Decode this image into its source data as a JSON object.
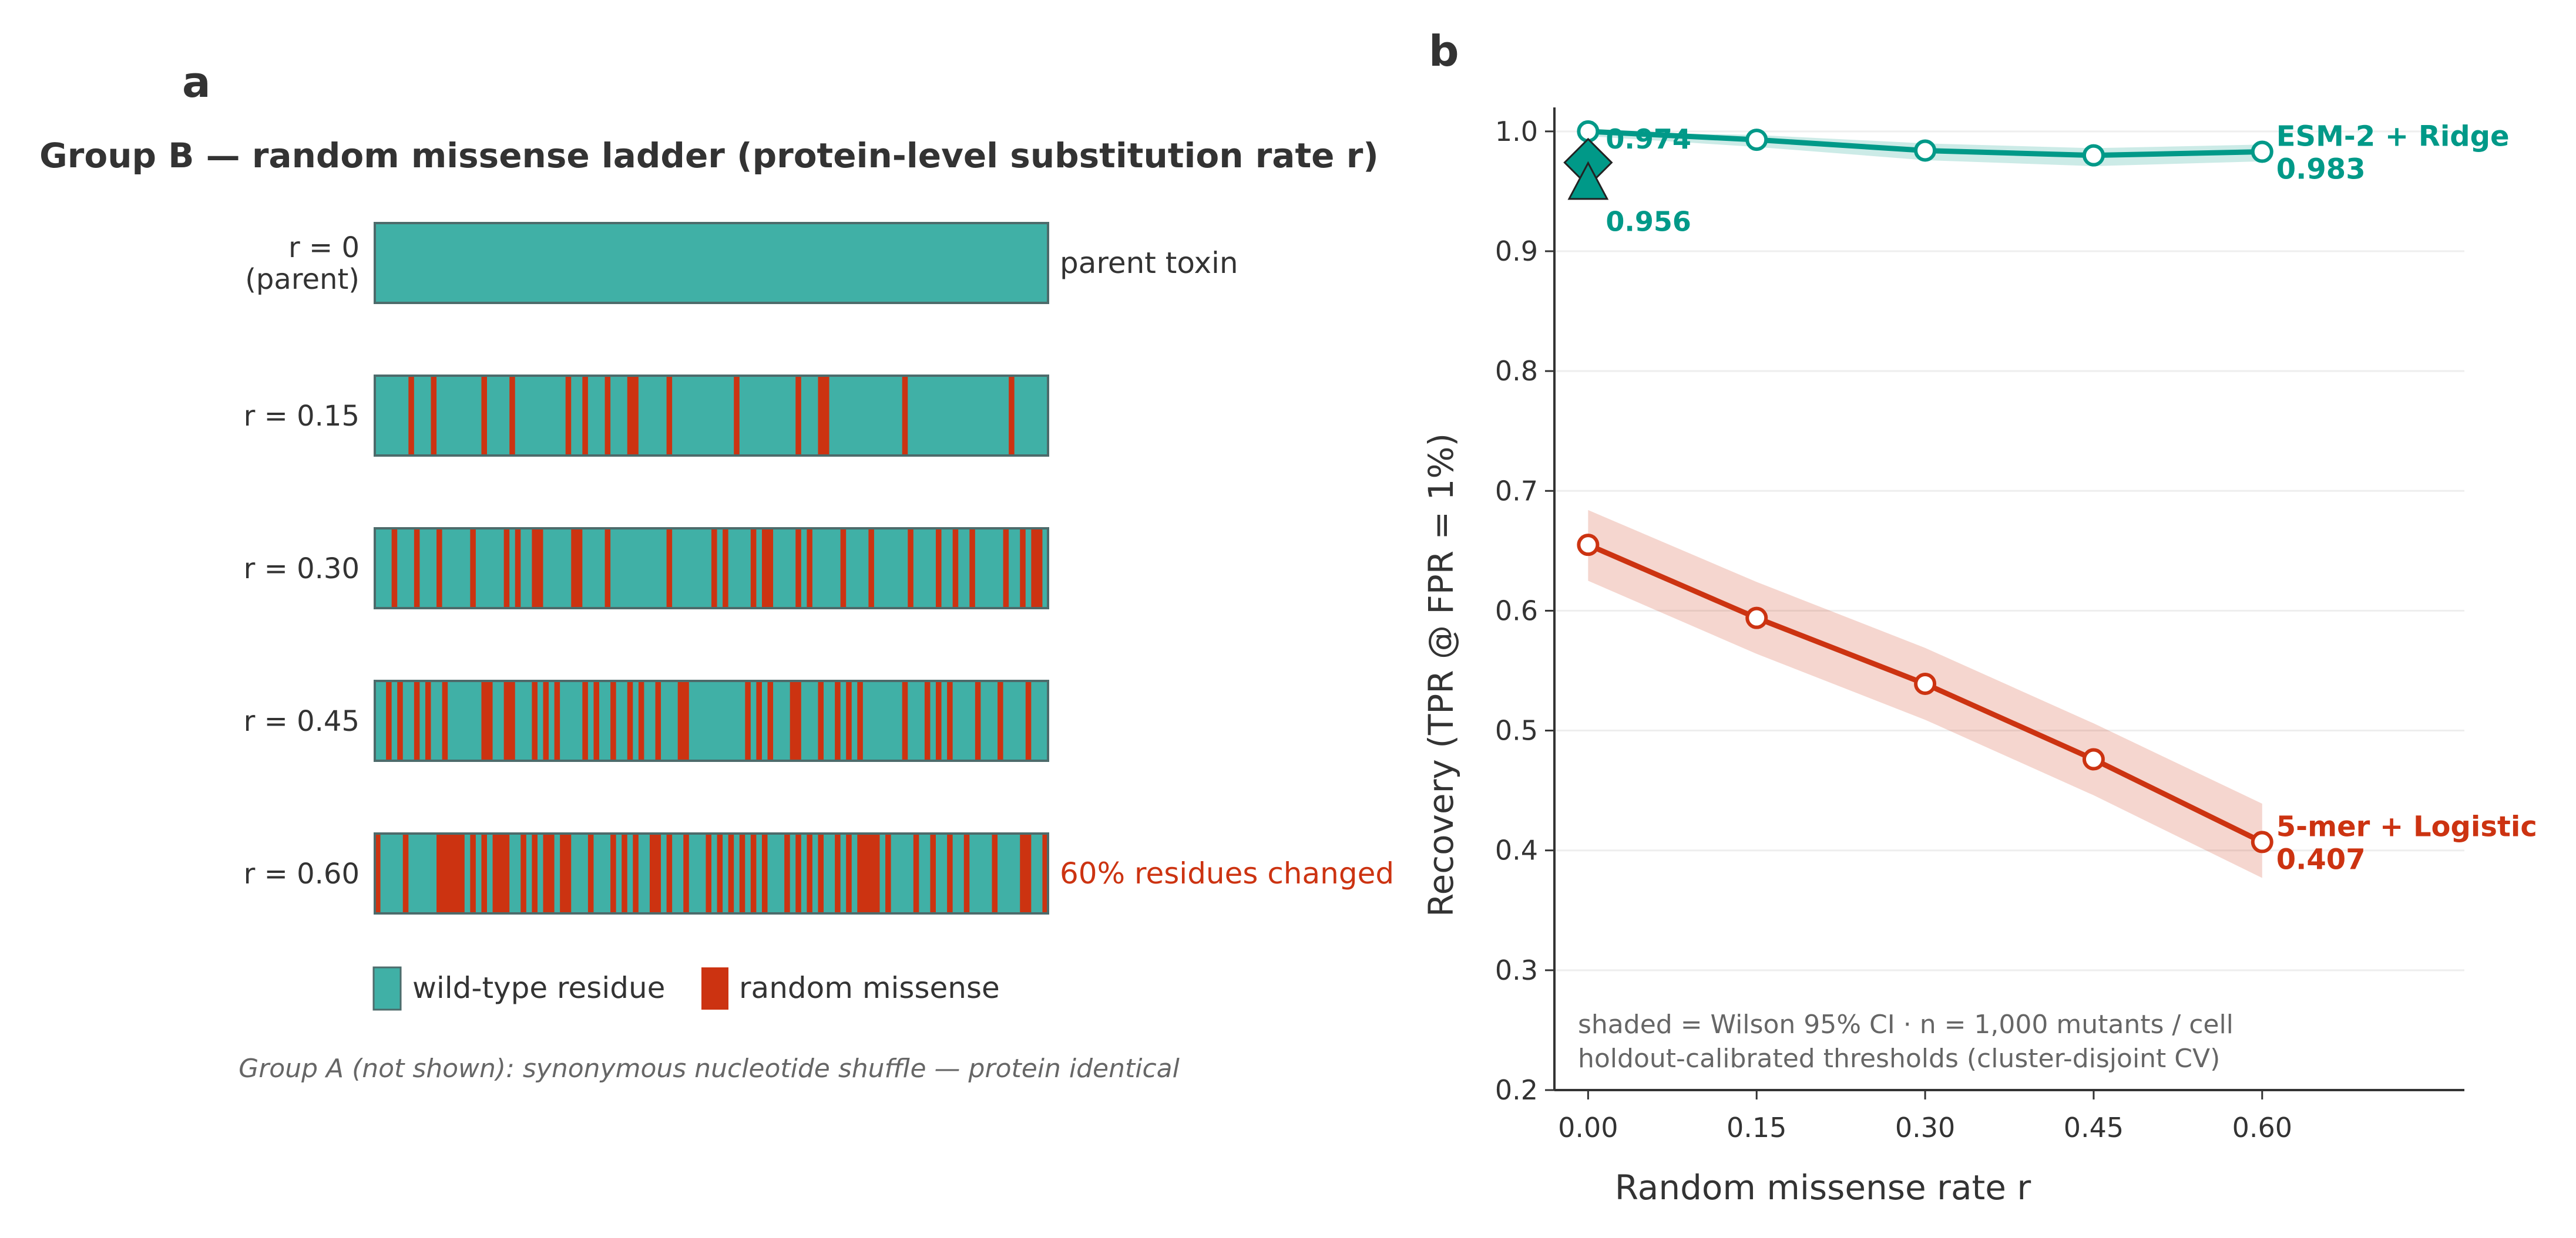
{
  "panel_a": {
    "label": "a",
    "title": "Group B — random missense ladder (protein-level substitution rate r)",
    "rows": [
      {
        "label_lines": [
          "r = 0",
          "(parent)"
        ],
        "rate": 0.0,
        "annotation": "parent toxin",
        "annotation_color": "#333333"
      },
      {
        "label_lines": [
          "r = 0.15"
        ],
        "rate": 0.15,
        "annotation": "",
        "annotation_color": "#333333"
      },
      {
        "label_lines": [
          "r = 0.30"
        ],
        "rate": 0.3,
        "annotation": "",
        "annotation_color": "#333333"
      },
      {
        "label_lines": [
          "r = 0.45"
        ],
        "rate": 0.45,
        "annotation": "",
        "annotation_color": "#333333"
      },
      {
        "label_lines": [
          "r = 0.60"
        ],
        "rate": 0.6,
        "annotation": "60% residues changed",
        "annotation_color": "#cc3311"
      }
    ],
    "legend": [
      {
        "label": "wild-type residue",
        "color": "#40b0a6"
      },
      {
        "label": "random missense",
        "color": "#cc3311"
      }
    ],
    "footnote": "Group A (not shown): synonymous nucleotide shuffle — protein identical"
  },
  "chart_data": {
    "type": "line",
    "panel_label": "b",
    "xlabel": "Random missense rate r",
    "ylabel": "Recovery (TPR @ FPR = 1%)",
    "xlim": [
      -0.03,
      0.78
    ],
    "ylim": [
      0.2,
      1.02
    ],
    "x_ticks": [
      "0.00",
      "0.15",
      "0.30",
      "0.45",
      "0.60"
    ],
    "y_ticks": [
      "0.2",
      "0.3",
      "0.4",
      "0.5",
      "0.6",
      "0.7",
      "0.8",
      "0.9",
      "1.0"
    ],
    "grid": "horizontal",
    "series": [
      {
        "name": "ESM-2 + Ridge",
        "color": "#009988",
        "x": [
          0.0,
          0.15,
          0.3,
          0.45,
          0.6
        ],
        "y": [
          1.0,
          0.993,
          0.984,
          0.98,
          0.983
        ],
        "ci_low": [
          0.996,
          0.987,
          0.976,
          0.971,
          0.975
        ],
        "ci_high": [
          1.0,
          0.997,
          0.99,
          0.986,
          0.989
        ],
        "end_label": [
          "ESM-2 + Ridge",
          "0.983"
        ]
      },
      {
        "name": "5-mer + Logistic",
        "color": "#cc3311",
        "x": [
          0.0,
          0.15,
          0.3,
          0.45,
          0.6
        ],
        "y": [
          0.655,
          0.594,
          0.539,
          0.476,
          0.407
        ],
        "ci_low": [
          0.625,
          0.564,
          0.509,
          0.446,
          0.377
        ],
        "ci_high": [
          0.684,
          0.624,
          0.569,
          0.506,
          0.439
        ],
        "end_label": [
          "5-mer + Logistic",
          "0.407"
        ]
      }
    ],
    "markers": [
      {
        "shape": "diamond",
        "x": 0.0,
        "y": 0.974,
        "label": "0.974",
        "color": "#009988"
      },
      {
        "shape": "triangle",
        "x": 0.0,
        "y": 0.956,
        "label": "0.956",
        "color": "#009988"
      }
    ],
    "annotation_lines": [
      "shaded = Wilson 95% CI · n = 1,000 mutants / cell",
      "holdout-calibrated thresholds (cluster-disjoint CV)"
    ]
  }
}
